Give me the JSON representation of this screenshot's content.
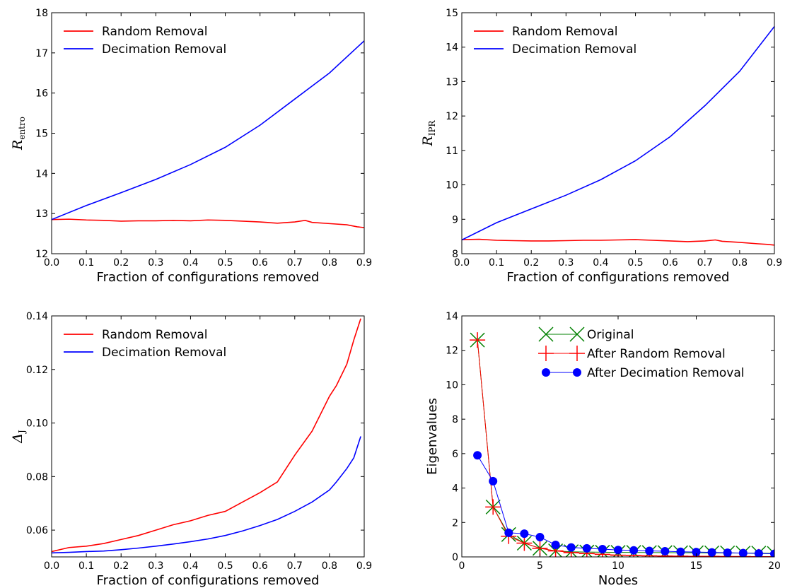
{
  "chart_data": [
    {
      "type": "line",
      "title": "",
      "xlabel": "Fraction of configurations removed",
      "ylabel": "R",
      "ylabel_sub": "entro",
      "xlim": [
        0.0,
        0.9
      ],
      "ylim": [
        12,
        18
      ],
      "xticks": [
        "0.0",
        "0.1",
        "0.2",
        "0.3",
        "0.4",
        "0.5",
        "0.6",
        "0.7",
        "0.8",
        "0.9"
      ],
      "yticks": [
        "12",
        "13",
        "14",
        "15",
        "16",
        "17",
        "18"
      ],
      "legend_position": "top-left",
      "series": [
        {
          "name": "Random Removal",
          "color": "#ff0000",
          "x": [
            0.0,
            0.05,
            0.1,
            0.15,
            0.2,
            0.25,
            0.3,
            0.35,
            0.4,
            0.45,
            0.5,
            0.55,
            0.6,
            0.65,
            0.7,
            0.73,
            0.75,
            0.8,
            0.85,
            0.88,
            0.9
          ],
          "y": [
            12.85,
            12.86,
            12.84,
            12.83,
            12.81,
            12.82,
            12.82,
            12.83,
            12.82,
            12.84,
            12.83,
            12.81,
            12.79,
            12.76,
            12.79,
            12.83,
            12.78,
            12.75,
            12.72,
            12.67,
            12.65
          ]
        },
        {
          "name": "Decimation Removal",
          "color": "#0000ff",
          "x": [
            0.0,
            0.1,
            0.2,
            0.3,
            0.4,
            0.5,
            0.6,
            0.7,
            0.8,
            0.9
          ],
          "y": [
            12.85,
            13.2,
            13.52,
            13.85,
            14.22,
            14.65,
            15.2,
            15.85,
            16.5,
            17.3
          ]
        }
      ]
    },
    {
      "type": "line",
      "title": "",
      "xlabel": "Fraction of configurations removed",
      "ylabel": "R",
      "ylabel_sub": "IPR",
      "xlim": [
        0.0,
        0.9
      ],
      "ylim": [
        8,
        15
      ],
      "xticks": [
        "0.0",
        "0.1",
        "0.2",
        "0.3",
        "0.4",
        "0.5",
        "0.6",
        "0.7",
        "0.8",
        "0.9"
      ],
      "yticks": [
        "8",
        "9",
        "10",
        "11",
        "12",
        "13",
        "14",
        "15"
      ],
      "legend_position": "top-left",
      "series": [
        {
          "name": "Random Removal",
          "color": "#ff0000",
          "x": [
            0.0,
            0.05,
            0.1,
            0.15,
            0.2,
            0.25,
            0.3,
            0.35,
            0.4,
            0.45,
            0.5,
            0.55,
            0.6,
            0.65,
            0.7,
            0.73,
            0.75,
            0.8,
            0.85,
            0.88,
            0.9
          ],
          "y": [
            8.41,
            8.42,
            8.39,
            8.38,
            8.37,
            8.37,
            8.38,
            8.39,
            8.39,
            8.4,
            8.41,
            8.39,
            8.37,
            8.35,
            8.37,
            8.4,
            8.36,
            8.33,
            8.29,
            8.27,
            8.25
          ]
        },
        {
          "name": "Decimation Removal",
          "color": "#0000ff",
          "x": [
            0.0,
            0.1,
            0.2,
            0.3,
            0.4,
            0.5,
            0.6,
            0.7,
            0.8,
            0.9
          ],
          "y": [
            8.4,
            8.9,
            9.3,
            9.7,
            10.15,
            10.7,
            11.4,
            12.3,
            13.3,
            14.6
          ]
        }
      ]
    },
    {
      "type": "line",
      "title": "",
      "xlabel": "Fraction of configurations removed",
      "ylabel": "Δ",
      "ylabel_sub": "J",
      "xlim": [
        0.0,
        0.9
      ],
      "ylim": [
        0.05,
        0.14
      ],
      "xticks": [
        "0.0",
        "0.1",
        "0.2",
        "0.3",
        "0.4",
        "0.5",
        "0.6",
        "0.7",
        "0.8",
        "0.9"
      ],
      "yticks": [
        "0.06",
        "0.08",
        "0.10",
        "0.12",
        "0.14"
      ],
      "legend_position": "top-left",
      "series": [
        {
          "name": "Random Removal",
          "color": "#ff0000",
          "x": [
            0.0,
            0.05,
            0.1,
            0.15,
            0.2,
            0.25,
            0.3,
            0.35,
            0.4,
            0.45,
            0.5,
            0.55,
            0.6,
            0.65,
            0.7,
            0.75,
            0.8,
            0.82,
            0.85,
            0.87,
            0.89
          ],
          "y": [
            0.052,
            0.0535,
            0.054,
            0.055,
            0.0565,
            0.058,
            0.06,
            0.062,
            0.0635,
            0.0655,
            0.067,
            0.0705,
            0.074,
            0.078,
            0.088,
            0.097,
            0.11,
            0.114,
            0.122,
            0.131,
            0.139
          ]
        },
        {
          "name": "Decimation Removal",
          "color": "#0000ff",
          "x": [
            0.0,
            0.05,
            0.1,
            0.15,
            0.2,
            0.25,
            0.3,
            0.35,
            0.4,
            0.45,
            0.5,
            0.55,
            0.6,
            0.65,
            0.7,
            0.75,
            0.8,
            0.82,
            0.85,
            0.87,
            0.89
          ],
          "y": [
            0.0515,
            0.0517,
            0.052,
            0.0522,
            0.0527,
            0.0533,
            0.054,
            0.0548,
            0.0557,
            0.0567,
            0.058,
            0.0597,
            0.0617,
            0.064,
            0.067,
            0.0705,
            0.075,
            0.078,
            0.083,
            0.087,
            0.095
          ]
        }
      ]
    },
    {
      "type": "line",
      "title": "",
      "xlabel": "Nodes",
      "ylabel": "Eigenvalues",
      "ylabel_sub": "",
      "xlim": [
        0,
        20
      ],
      "ylim": [
        0,
        14
      ],
      "xticks": [
        "0",
        "5",
        "10",
        "15",
        "20"
      ],
      "yticks": [
        "0",
        "2",
        "4",
        "6",
        "8",
        "10",
        "12",
        "14"
      ],
      "legend_position": "top-right",
      "series": [
        {
          "name": "Original",
          "color": "#008000",
          "marker": "x",
          "x": [
            1,
            2,
            3,
            4,
            5,
            6,
            7,
            8,
            9,
            10,
            11,
            12,
            13,
            14,
            15,
            16,
            17,
            18,
            19,
            20
          ],
          "y": [
            12.6,
            2.9,
            1.3,
            0.8,
            0.5,
            0.35,
            0.3,
            0.28,
            0.27,
            0.26,
            0.26,
            0.25,
            0.25,
            0.24,
            0.24,
            0.23,
            0.23,
            0.22,
            0.22,
            0.2
          ]
        },
        {
          "name": "After Random Removal",
          "color": "#ff0000",
          "marker": "+",
          "x": [
            1,
            2,
            3,
            4,
            5,
            6,
            7,
            8,
            9,
            10,
            11,
            12,
            13,
            14,
            15,
            16,
            17,
            18,
            19,
            20
          ],
          "y": [
            12.6,
            2.9,
            1.2,
            0.8,
            0.5,
            0.35,
            0.25,
            0.2,
            0.15,
            0.1,
            0.08,
            0.06,
            0.05,
            0.04,
            0.03,
            0.03,
            0.02,
            0.02,
            0.01,
            0.01
          ]
        },
        {
          "name": "After Decimation Removal",
          "color": "#0000ff",
          "marker": "o",
          "x": [
            1,
            2,
            3,
            4,
            5,
            6,
            7,
            8,
            9,
            10,
            11,
            12,
            13,
            14,
            15,
            16,
            17,
            18,
            19,
            20
          ],
          "y": [
            5.9,
            4.4,
            1.4,
            1.35,
            1.15,
            0.7,
            0.55,
            0.5,
            0.45,
            0.4,
            0.38,
            0.35,
            0.33,
            0.3,
            0.28,
            0.26,
            0.24,
            0.22,
            0.2,
            0.18
          ]
        }
      ]
    }
  ]
}
